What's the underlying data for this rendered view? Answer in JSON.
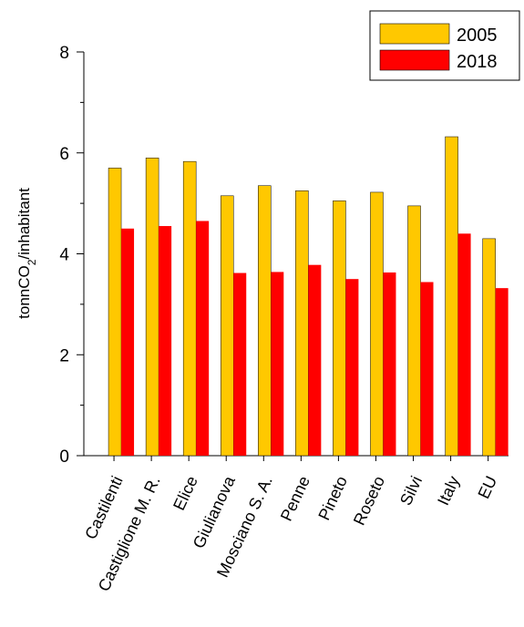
{
  "chart_data": {
    "type": "bar",
    "ylabel": "tonnCO2/inhabitant",
    "ylabel_main": "tonnCO",
    "ylabel_sub": "2",
    "ylabel_tail": "/inhabitant",
    "ylim": [
      0,
      8
    ],
    "yticks": [
      "0",
      "2",
      "4",
      "6",
      "8"
    ],
    "grid": false,
    "legend_position": "top-right",
    "categories": [
      "Castilenti",
      "Castiglione M. R.",
      "Elice",
      "Giulianova",
      "Mosciano S. A.",
      "Penne",
      "Pineto",
      "Roseto",
      "Silvi",
      "Italy",
      "EU"
    ],
    "series": [
      {
        "name": "2005",
        "color": "#FFC800",
        "values": [
          5.7,
          5.9,
          5.83,
          5.15,
          5.35,
          5.25,
          5.05,
          5.22,
          4.95,
          6.32,
          4.3
        ]
      },
      {
        "name": "2018",
        "color": "#FF0000",
        "values": [
          4.5,
          4.55,
          4.65,
          3.62,
          3.64,
          3.78,
          3.5,
          3.63,
          3.44,
          4.4,
          3.32
        ]
      }
    ]
  }
}
